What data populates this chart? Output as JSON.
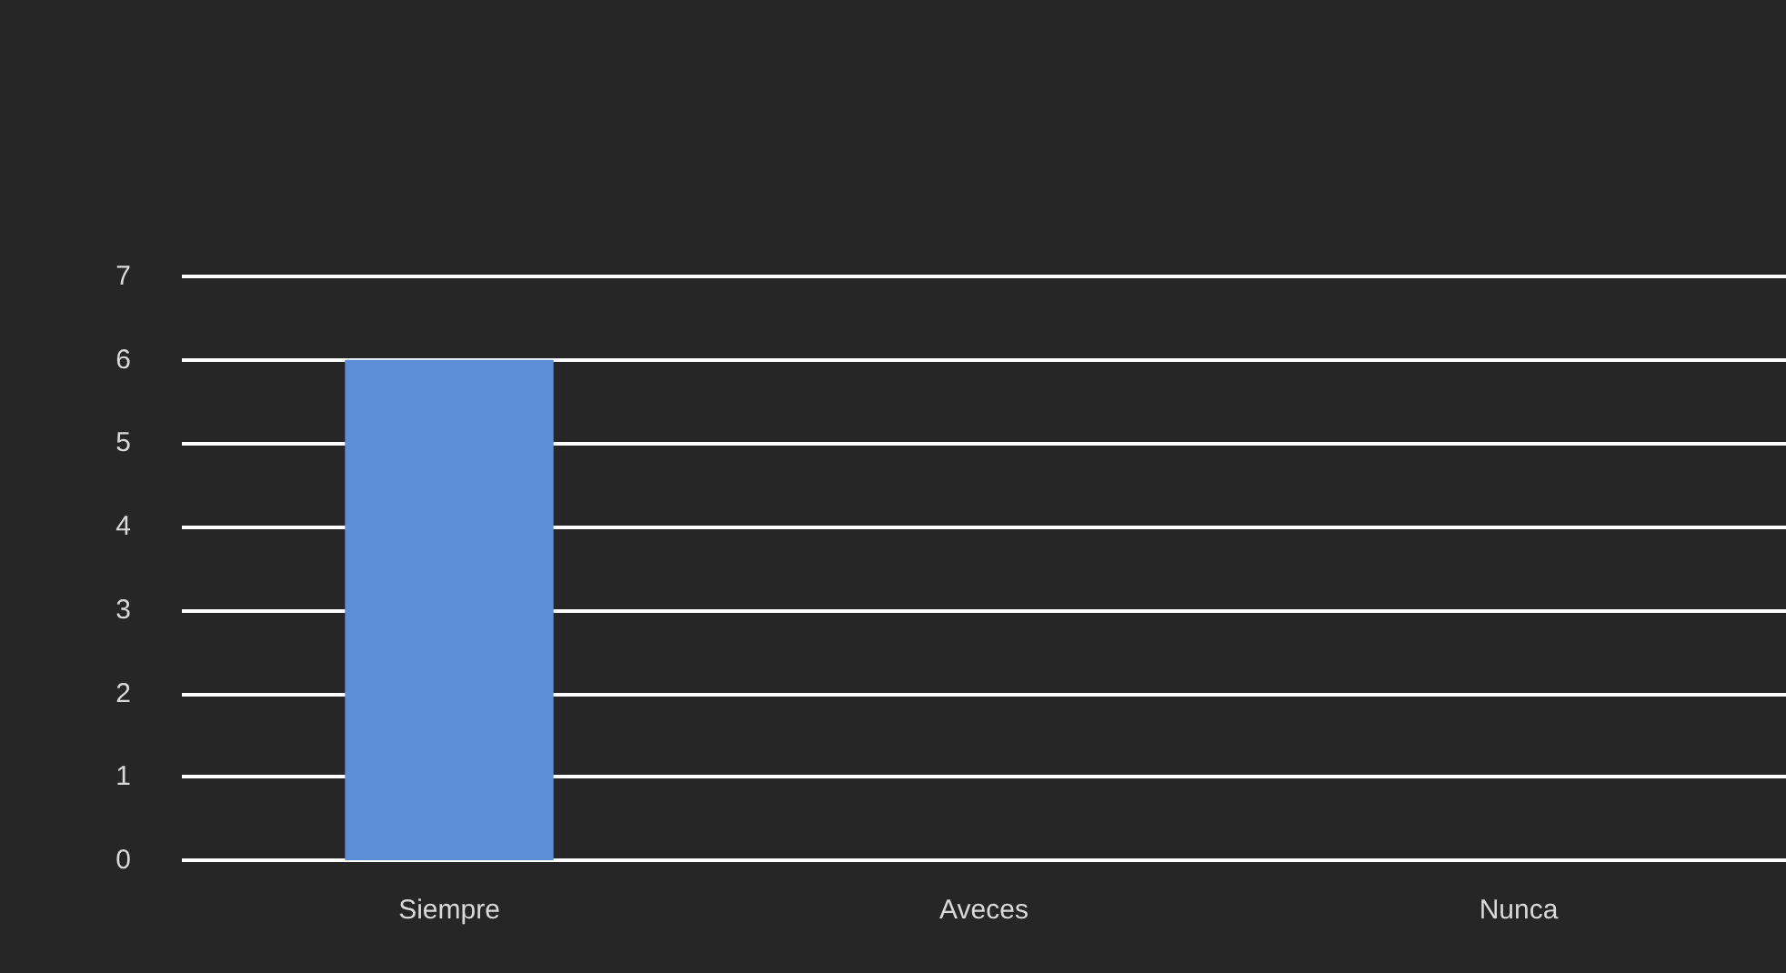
{
  "chart_data": {
    "type": "bar",
    "categories": [
      "Siempre",
      "Aveces",
      "Nunca"
    ],
    "values": [
      6,
      0,
      0
    ],
    "color": "#5b8ed6",
    "ylim": [
      0,
      7
    ],
    "yticks": [
      0,
      1,
      2,
      3,
      4,
      5,
      6,
      7
    ],
    "grid": "y"
  }
}
